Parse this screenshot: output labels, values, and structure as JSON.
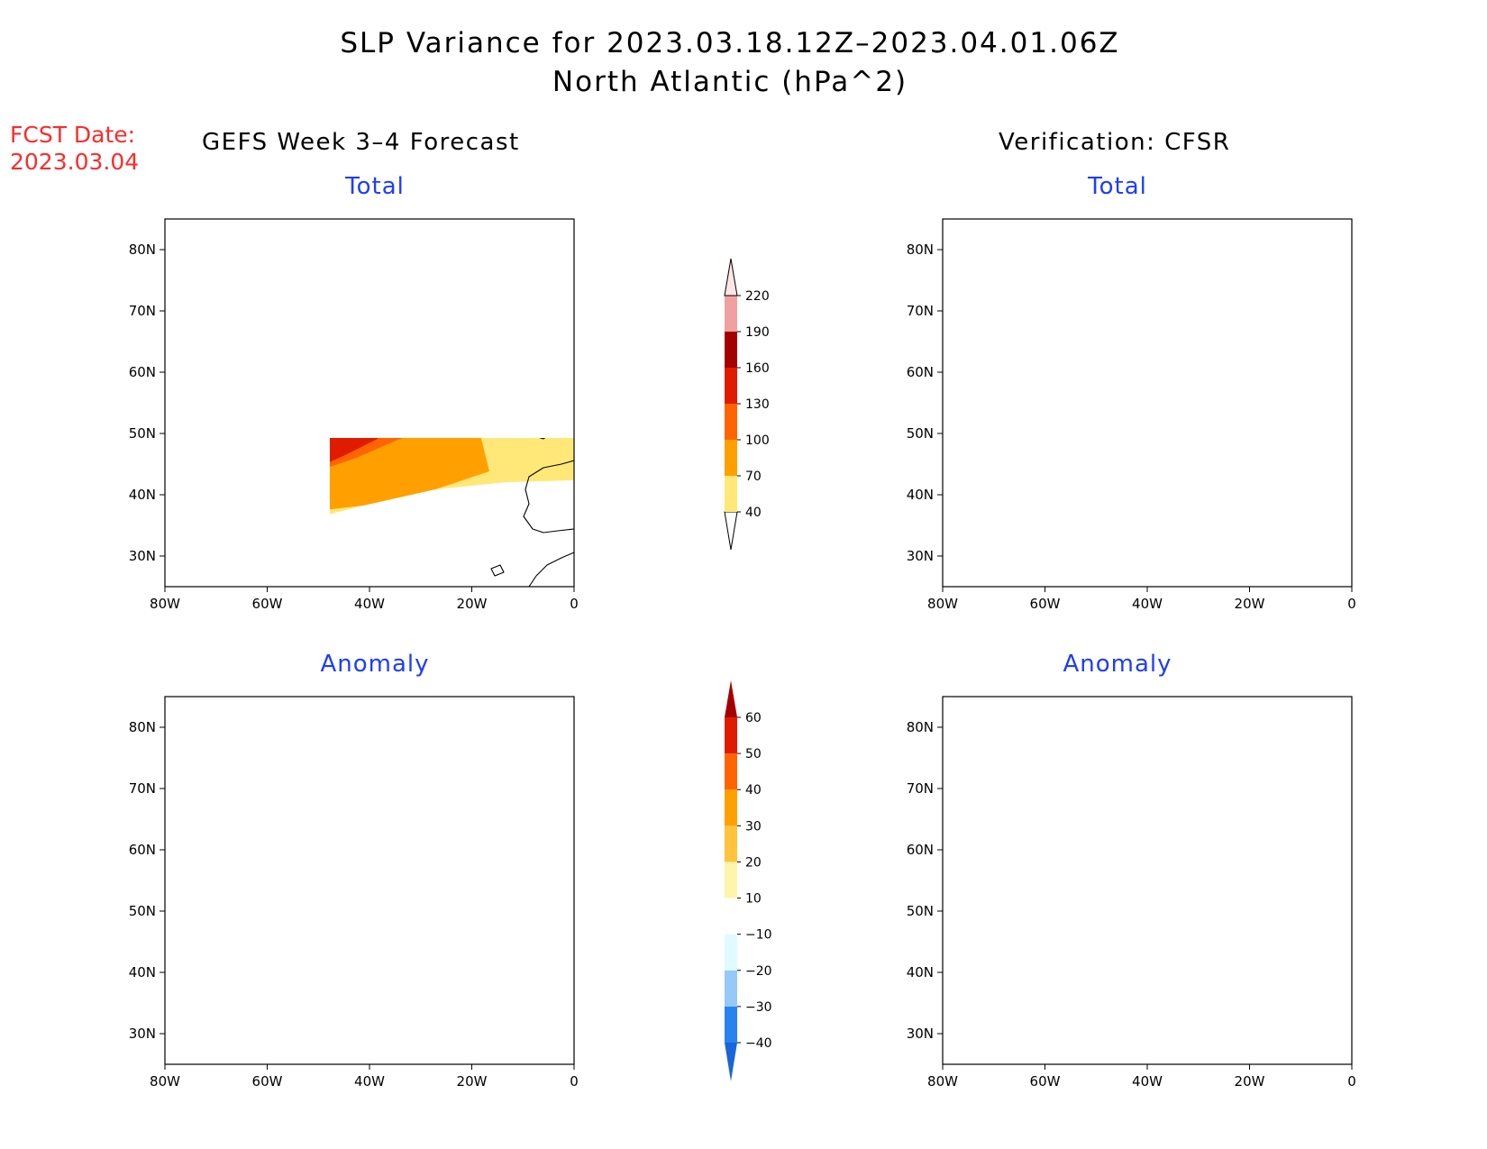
{
  "title_line1": "SLP Variance for 2023.03.18.12Z–2023.04.01.06Z",
  "title_line2": "North Atlantic (hPa^2)",
  "forecast_date": {
    "label": "FCST Date:",
    "value": "2023.03.04"
  },
  "columns": {
    "left": "GEFS Week 3–4 Forecast",
    "right": "Verification: CFSR"
  },
  "panel_titles": {
    "top": "Total",
    "bottom": "Anomaly"
  },
  "axes": {
    "lon_labels": [
      "80W",
      "60W",
      "40W",
      "20W",
      "0"
    ],
    "lat_labels": [
      "30N",
      "40N",
      "50N",
      "60N",
      "70N",
      "80N"
    ]
  },
  "colorbars": {
    "total": {
      "labels": [
        "40",
        "70",
        "100",
        "130",
        "160",
        "190",
        "220"
      ],
      "colors": [
        "#ffe878",
        "#ffa000",
        "#ff6400",
        "#e11b00",
        "#a50000",
        "#f0a0a0",
        "#ffe6e6"
      ]
    },
    "anomaly": {
      "labels": [
        "−40",
        "−30",
        "−20",
        "−10",
        "10",
        "20",
        "30",
        "40",
        "50",
        "60"
      ],
      "colors": [
        "#1966d8",
        "#2882f0",
        "#96c8fa",
        "#e1faff",
        "#ffffff",
        "#fff5aa",
        "#ffc33c",
        "#ffa000",
        "#ff6400",
        "#e11b00",
        "#a50000"
      ]
    }
  }
}
